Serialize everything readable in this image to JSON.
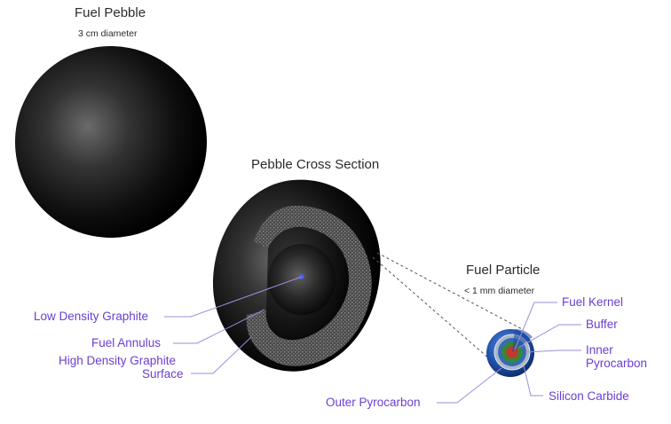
{
  "fuel_pebble": {
    "title": "Fuel Pebble",
    "diameter": "3 cm diameter"
  },
  "cross_section": {
    "title": "Pebble Cross Section",
    "labels": {
      "low_density_graphite": "Low Density Graphite",
      "fuel_annulus": "Fuel Annulus",
      "high_density_graphite_line1": "High Density Graphite",
      "high_density_graphite_line2": "Surface"
    }
  },
  "fuel_particle": {
    "title": "Fuel Particle",
    "diameter": "< 1 mm diameter",
    "labels": {
      "fuel_kernel": "Fuel Kernel",
      "buffer": "Buffer",
      "inner_pyrocarbon_line1": "Inner",
      "inner_pyrocarbon_line2": "Pyrocarbon",
      "silicon_carbide": "Silicon Carbide",
      "outer_pyrocarbon": "Outer Pyrocarbon"
    }
  },
  "colors": {
    "label": "#6a3fd0",
    "leader_line": "#9b8fd8",
    "pebble_dark": "#0a0a0a",
    "pebble_highlight": "#5a5a5a",
    "kernel": "#c0392b",
    "buffer": "#2e8b3e",
    "pyrocarbon": "#1f4fa8"
  }
}
